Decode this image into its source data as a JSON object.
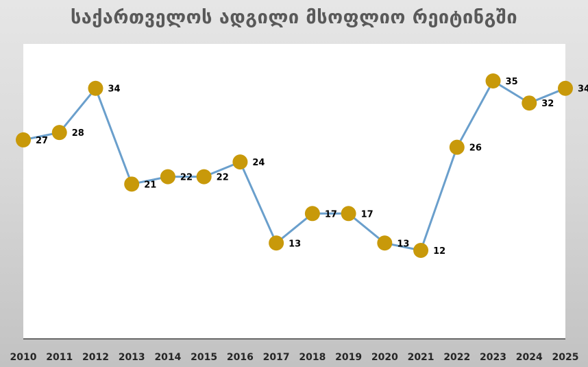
{
  "chart_data": {
    "type": "line",
    "title": "საქართველოს ადგილი მსოფლიო რეიტინგში",
    "xlabel": "",
    "ylabel": "",
    "categories": [
      "2010",
      "2011",
      "2012",
      "2013",
      "2014",
      "2015",
      "2016",
      "2017",
      "2018",
      "2019",
      "2020",
      "2021",
      "2022",
      "2023",
      "2024",
      "2025"
    ],
    "series": [
      {
        "values": [
          27,
          28,
          34,
          21,
          22,
          22,
          24,
          13,
          17,
          17,
          13,
          12,
          26,
          35,
          32,
          34
        ]
      }
    ],
    "ylim": [
      0,
      40
    ],
    "y_axis_visible": false,
    "grid": false,
    "legend": "none",
    "data_labels": true,
    "colors": {
      "line": "#6a9fcc",
      "marker": "#c8990a",
      "plot_background": "#ffffff",
      "axis": "#404040"
    }
  }
}
